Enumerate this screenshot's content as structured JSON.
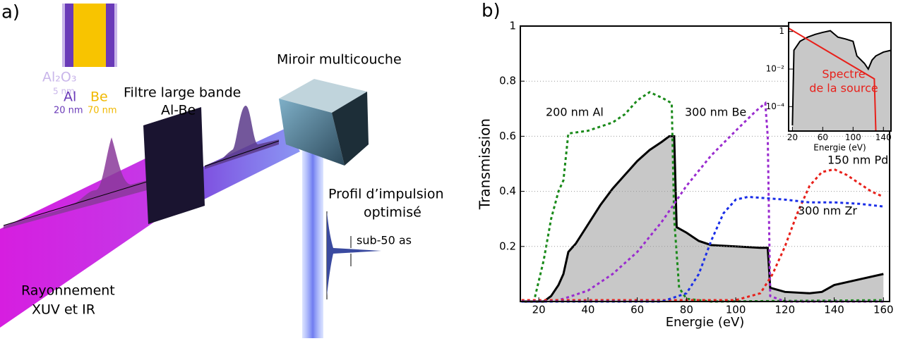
{
  "panel_a": {
    "label": "a)",
    "layers": {
      "oxide": "Al₂O₃",
      "oxide_thickness": "5 nm",
      "al": "Al",
      "be": "Be",
      "al_thickness": "20 nm",
      "be_thickness": "70 nm"
    },
    "filter": [
      "Filtre large bande",
      "Al-Be"
    ],
    "mirror": "Miroir multicouche",
    "profile": [
      "Profil d’impulsion",
      "optimisé"
    ],
    "duration": "sub-50 as",
    "source": [
      "Rayonnement",
      "XUV et IR"
    ]
  },
  "panel_b": {
    "label": "b)"
  },
  "chart_data": [
    {
      "type": "line",
      "xlabel": "Energie (eV)",
      "ylabel": "Transmission",
      "xlim": [
        12.5,
        162.5
      ],
      "ylim": [
        0,
        1
      ],
      "xticks": [
        20,
        40,
        60,
        80,
        100,
        120,
        140,
        160
      ],
      "yticks": [
        0.2,
        0.4,
        0.6,
        0.8,
        1
      ],
      "grid": true,
      "series": [
        {
          "color": "#000000",
          "fill": "#c8c8c8",
          "x": [
            13,
            22,
            25,
            28,
            30,
            32,
            35,
            40,
            45,
            50,
            55,
            60,
            65,
            70,
            73,
            75,
            76,
            80,
            85,
            90,
            100,
            110,
            113,
            114,
            120,
            130,
            135,
            140,
            150,
            160
          ],
          "values": [
            0,
            0,
            0.02,
            0.06,
            0.1,
            0.18,
            0.21,
            0.28,
            0.35,
            0.41,
            0.46,
            0.51,
            0.55,
            0.58,
            0.6,
            0.6,
            0.27,
            0.25,
            0.22,
            0.205,
            0.2,
            0.195,
            0.195,
            0.05,
            0.035,
            0.03,
            0.035,
            0.06,
            0.08,
            0.1
          ]
        },
        {
          "name": "200 nm Al",
          "color": "#1a8a1a",
          "x": [
            13,
            18,
            22,
            25,
            28,
            30,
            32,
            40,
            50,
            55,
            60,
            65,
            70,
            74,
            75,
            77,
            80,
            90,
            160
          ],
          "values": [
            0,
            0,
            0.15,
            0.3,
            0.4,
            0.44,
            0.61,
            0.62,
            0.65,
            0.68,
            0.73,
            0.76,
            0.74,
            0.72,
            0.3,
            0.05,
            0.01,
            0,
            0.005
          ]
        },
        {
          "name": "300 nm Be",
          "color": "#9a2ccf",
          "x": [
            13,
            25,
            30,
            40,
            50,
            60,
            70,
            80,
            90,
            100,
            108,
            112,
            113,
            114,
            120,
            160
          ],
          "values": [
            0,
            0,
            0.01,
            0.04,
            0.1,
            0.18,
            0.29,
            0.42,
            0.53,
            0.62,
            0.69,
            0.72,
            0.6,
            0.02,
            0,
            0
          ]
        },
        {
          "name": "150 nm Pd",
          "color": "#e8201a",
          "x": [
            13,
            100,
            110,
            115,
            120,
            125,
            130,
            135,
            140,
            145,
            150,
            155,
            160
          ],
          "values": [
            0.005,
            0.005,
            0.03,
            0.1,
            0.2,
            0.32,
            0.42,
            0.47,
            0.48,
            0.46,
            0.43,
            0.4,
            0.38
          ]
        },
        {
          "name": "300 nm Zr",
          "color": "#1a2ee8",
          "x": [
            13,
            70,
            80,
            85,
            90,
            95,
            100,
            105,
            120,
            130,
            140,
            150,
            160
          ],
          "values": [
            0,
            0,
            0.03,
            0.1,
            0.22,
            0.32,
            0.37,
            0.38,
            0.37,
            0.36,
            0.36,
            0.355,
            0.345
          ]
        }
      ]
    },
    {
      "type": "line",
      "xlabel": "Energie (eV)",
      "log_y": true,
      "xlim": [
        15,
        150
      ],
      "ylim": [
        5e-06,
        3
      ],
      "xticks": [
        20,
        60,
        100,
        140
      ],
      "yticks": [
        1,
        {
          "value": 0.01,
          "label": "10⁻²"
        },
        {
          "value": 0.0001,
          "label": "10⁻⁴"
        }
      ],
      "annotation": [
        "Spectre",
        "de la source"
      ],
      "series": [
        {
          "color": "#000000",
          "fill": "#c8c8c8",
          "x": [
            20,
            22,
            30,
            40,
            50,
            60,
            70,
            80,
            90,
            100,
            105,
            115,
            120,
            125,
            130,
            140,
            150
          ],
          "values": [
            1e-05,
            0.1,
            0.3,
            0.5,
            0.7,
            0.9,
            1.1,
            0.5,
            0.4,
            0.3,
            0.05,
            0.02,
            0.01,
            0.03,
            0.05,
            0.08,
            0.1
          ]
        },
        {
          "color": "#e8201a",
          "x": [
            15,
            128,
            130
          ],
          "values": [
            1.5,
            0.003,
            5e-06
          ]
        }
      ]
    }
  ]
}
